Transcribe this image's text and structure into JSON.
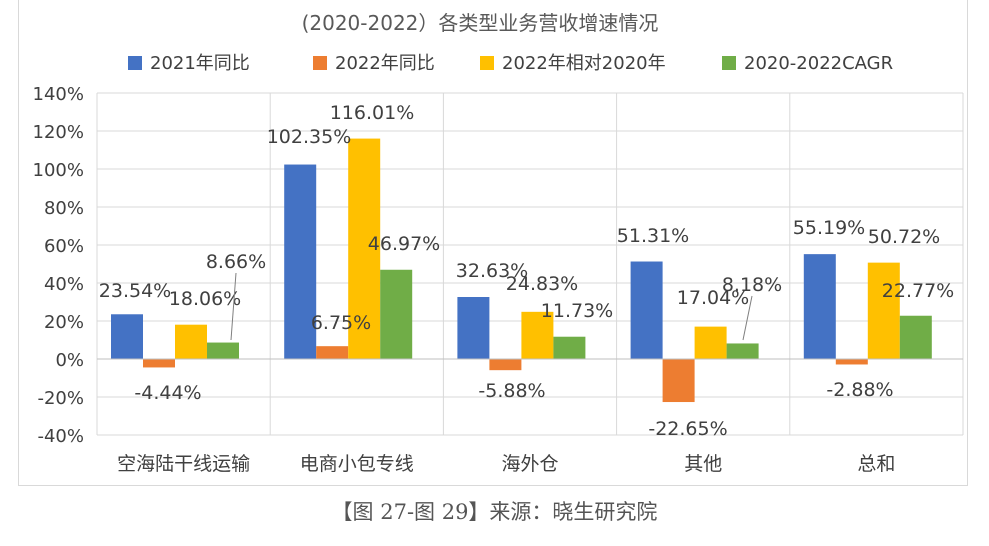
{
  "chart_data": {
    "type": "bar",
    "title": "(2020-2022）各类型业务营收增速情况",
    "categories": [
      "空海陆干线运输",
      "电商小包专线",
      "海外仓",
      "其他",
      "总和"
    ],
    "series": [
      {
        "name": "2021年同比",
        "color": "#4472c4",
        "values": [
          23.54,
          102.35,
          32.63,
          51.31,
          55.19
        ]
      },
      {
        "name": "2022年同比",
        "color": "#ed7d31",
        "values": [
          -4.44,
          6.75,
          -5.88,
          -22.65,
          -2.88
        ]
      },
      {
        "name": "2022年相对2020年",
        "color": "#ffc000",
        "values": [
          18.06,
          116.01,
          24.83,
          17.04,
          50.72
        ]
      },
      {
        "name": "2020-2022CAGR",
        "color": "#70ad47",
        "values": [
          8.66,
          46.97,
          11.73,
          8.18,
          22.77
        ]
      }
    ],
    "data_labels": [
      [
        "23.54%",
        "-4.44%",
        "18.06%",
        "8.66%"
      ],
      [
        "102.35%",
        "6.75%",
        "116.01%",
        "46.97%"
      ],
      [
        "32.63%",
        "-5.88%",
        "24.83%",
        "11.73%"
      ],
      [
        "51.31%",
        "-22.65%",
        "17.04%",
        "8.18%"
      ],
      [
        "55.19%",
        "-2.88%",
        "50.72%",
        "22.77%"
      ]
    ],
    "y_tick_labels": [
      "-40%",
      "-20%",
      "0%",
      "20%",
      "40%",
      "60%",
      "80%",
      "100%",
      "120%",
      "140%"
    ],
    "ylim": [
      -40,
      140
    ],
    "y_step": 20,
    "unit": "%",
    "legend_position": "top",
    "grid": true
  },
  "caption": "【图 27-图 29】来源：晓生研究院"
}
